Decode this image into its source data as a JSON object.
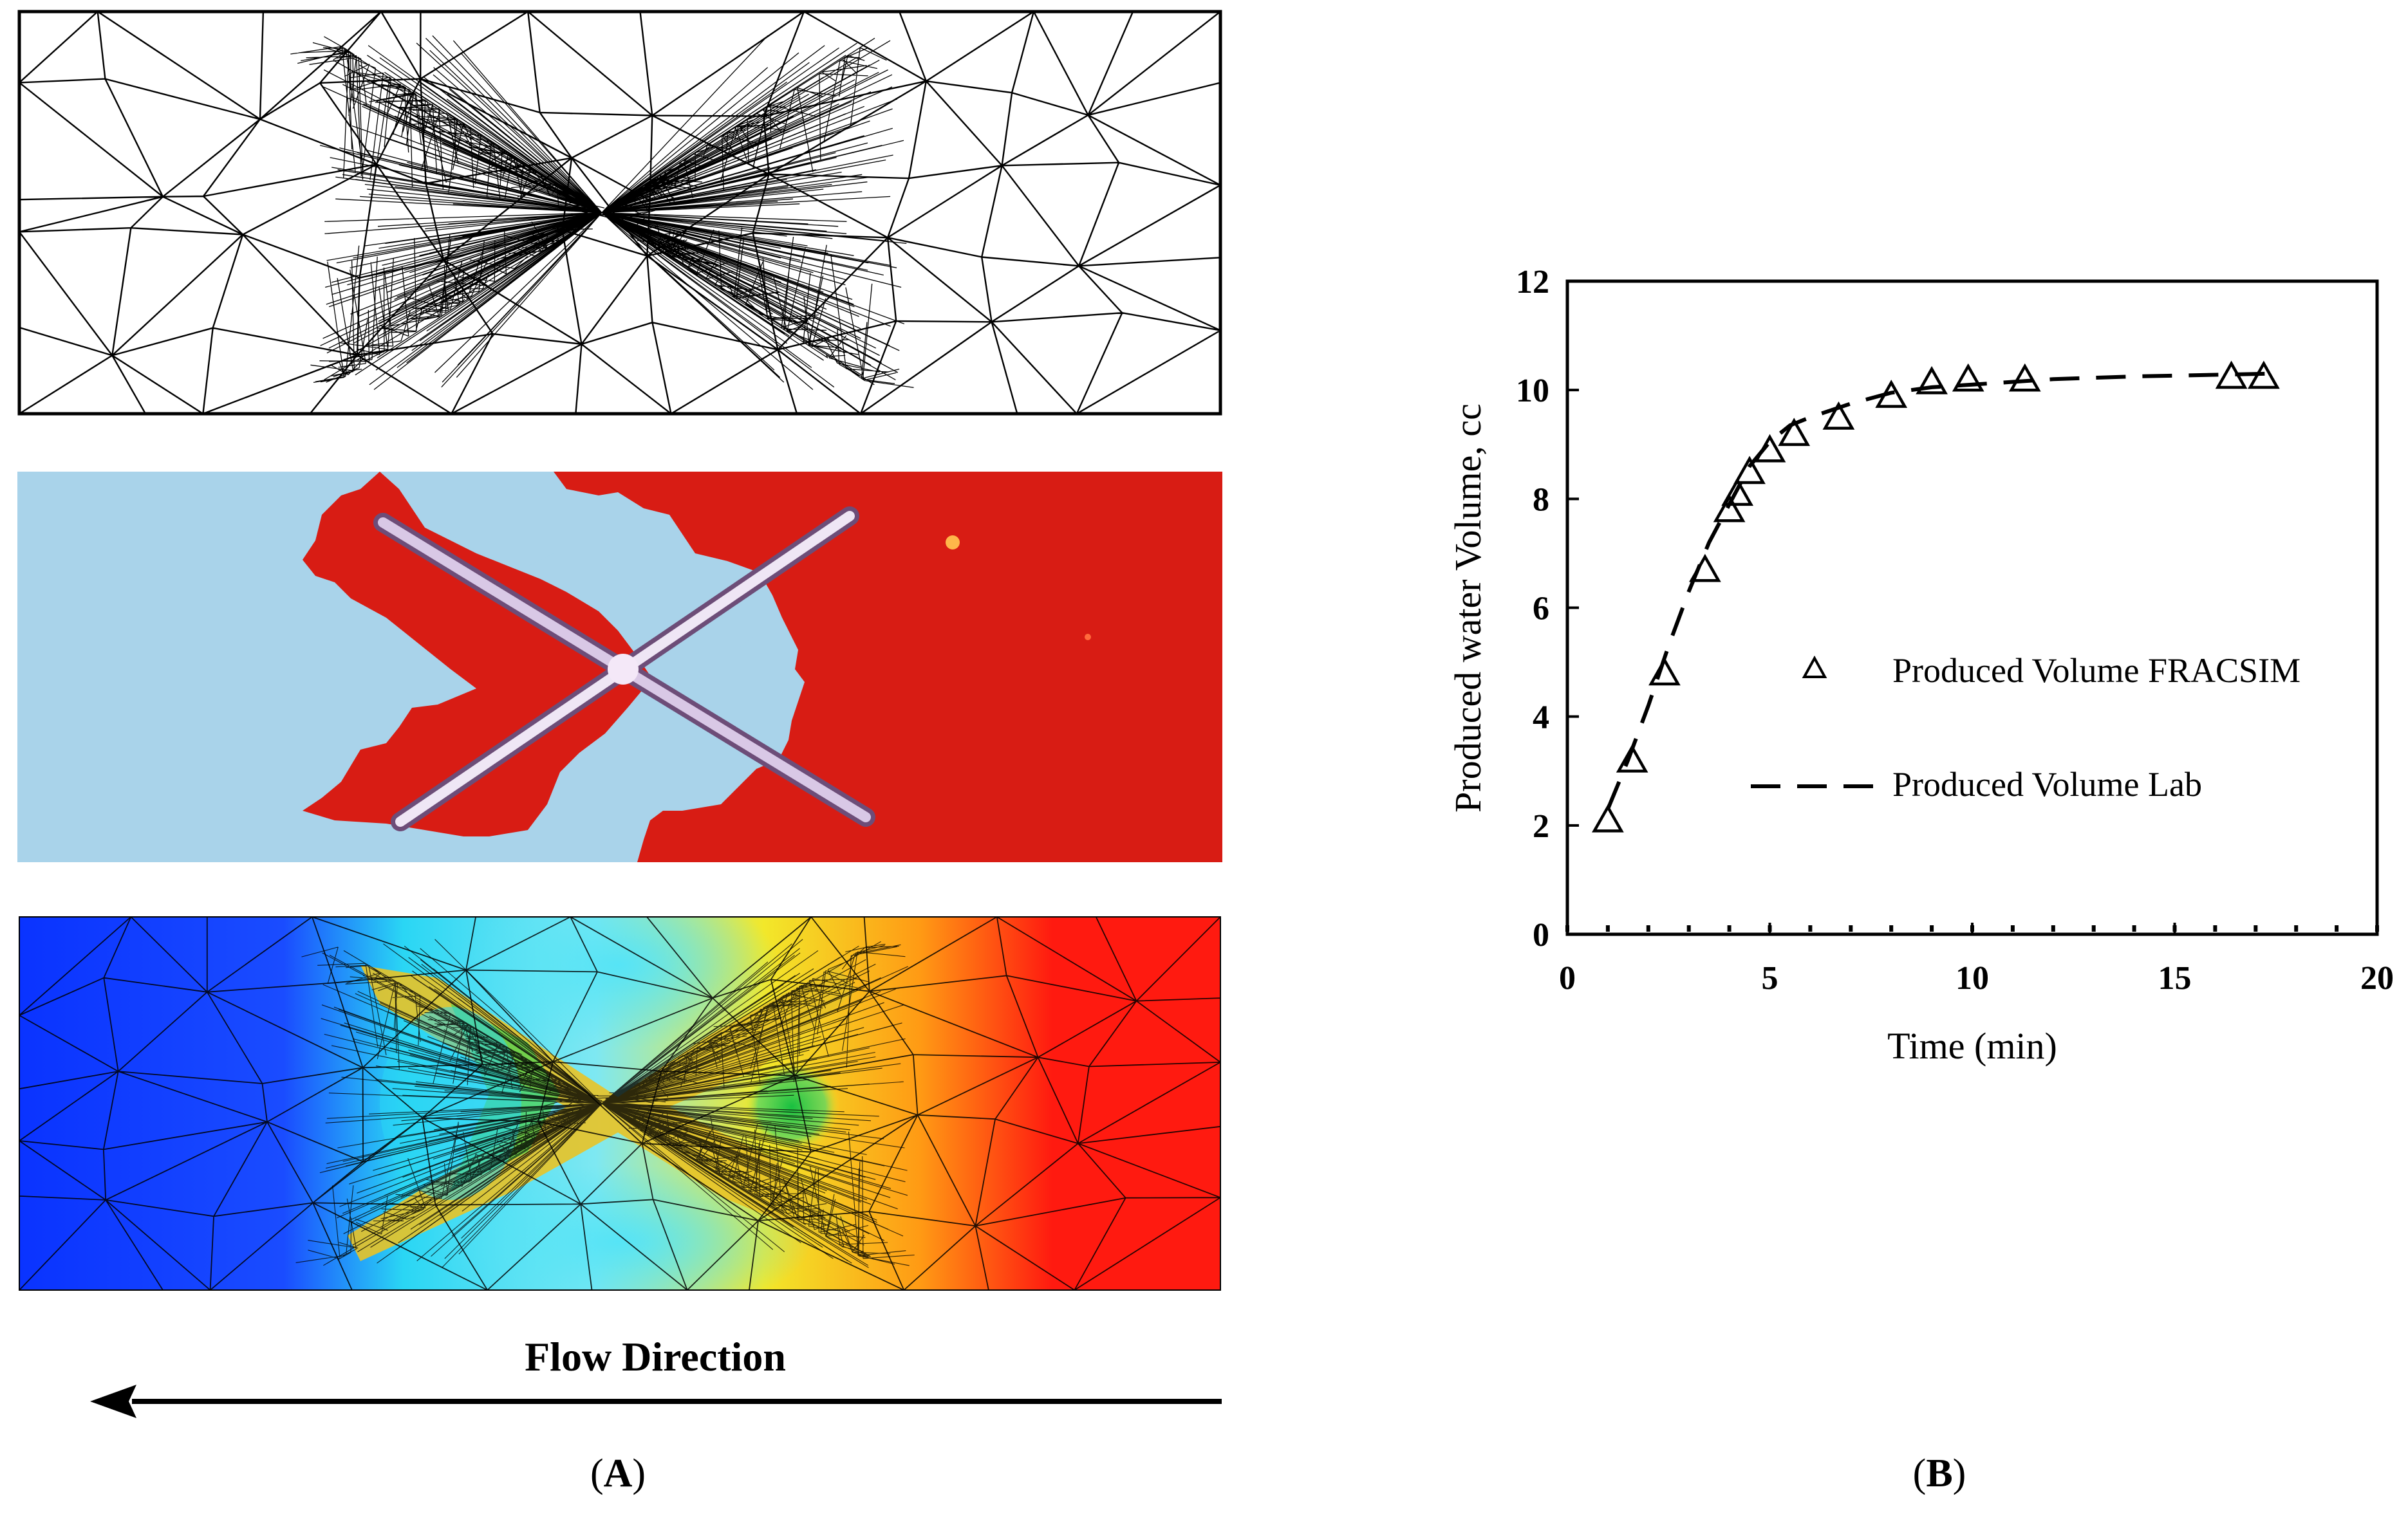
{
  "panel_a": {
    "label": "A",
    "flow_direction_label": "Flow Direction"
  },
  "panel_b": {
    "label": "B"
  },
  "colors": {
    "water_blue": "#a9d3ea",
    "oil_red": "#d81c14",
    "sim_deep_blue": "#0a33ff",
    "sim_cyan": "#2ad6f4",
    "sim_green": "#22cc44",
    "sim_yellow": "#f2e82a",
    "sim_orange": "#ff9a14",
    "sim_red": "#ff1a10"
  },
  "chart_data": {
    "type": "scatter",
    "xlabel": "Time (min)",
    "ylabel": "Produced water Volume, cc",
    "xlim": [
      0,
      20
    ],
    "ylim": [
      0,
      12
    ],
    "xticks": [
      0,
      5,
      10,
      15,
      20
    ],
    "yticks": [
      0,
      2,
      4,
      6,
      8,
      10,
      12
    ],
    "grid": false,
    "legend_position": "right",
    "series": [
      {
        "name": "Produced Volume FRACSIM",
        "marker": "open-triangle",
        "x": [
          1.0,
          1.6,
          2.4,
          3.4,
          4.0,
          4.2,
          4.5,
          5.0,
          5.6,
          6.7,
          8.0,
          9.0,
          9.9,
          11.3,
          16.4,
          17.2
        ],
        "y": [
          2.1,
          3.2,
          4.8,
          6.7,
          7.8,
          8.1,
          8.5,
          8.9,
          9.2,
          9.5,
          9.9,
          10.15,
          10.2,
          10.2,
          10.25,
          10.25
        ]
      },
      {
        "name": "Produced Volume Lab",
        "line": "dashed",
        "x": [
          1.0,
          1.5,
          2.0,
          2.5,
          3.0,
          3.5,
          4.0,
          4.5,
          5.0,
          5.5,
          6.0,
          7.0,
          8.0,
          9.0,
          10.0,
          11.0,
          12.0,
          14.0,
          16.0,
          17.3
        ],
        "y": [
          2.3,
          3.2,
          4.2,
          5.3,
          6.3,
          7.2,
          7.9,
          8.6,
          9.05,
          9.35,
          9.5,
          9.75,
          9.95,
          10.05,
          10.1,
          10.15,
          10.2,
          10.25,
          10.28,
          10.3
        ]
      }
    ]
  }
}
